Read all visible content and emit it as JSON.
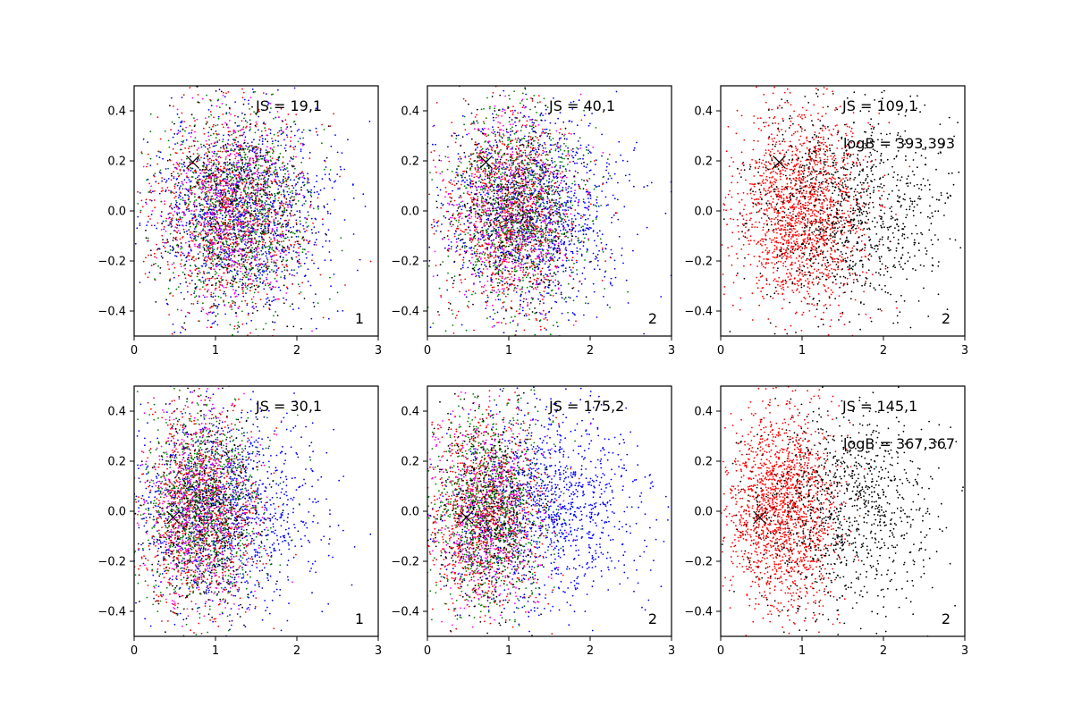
{
  "chart_data": [
    {
      "type": "scatter",
      "panel_label": "1",
      "annotations": [
        "JS = 19,1"
      ],
      "xlim": [
        0,
        3
      ],
      "ylim": [
        -0.5,
        0.5
      ],
      "xticks": [
        "0",
        "1",
        "2",
        "3"
      ],
      "yticks": [
        "−0.4",
        "−0.2",
        "0.0",
        "0.2",
        "0.4"
      ],
      "marker": {
        "x": 0.72,
        "y": 0.195
      },
      "series": [
        {
          "color": "#0000ff",
          "cloud": {
            "cx": 1.3,
            "sx": 0.55,
            "cy": 0.0,
            "sy": 0.2,
            "n": 1300,
            "seed": 11
          }
        },
        {
          "color": "#ff0000",
          "cloud": {
            "cx": 1.2,
            "sx": 0.45,
            "cy": 0.0,
            "sy": 0.2,
            "n": 1000,
            "seed": 12
          }
        },
        {
          "color": "#008000",
          "cloud": {
            "cx": 1.25,
            "sx": 0.45,
            "cy": 0.0,
            "sy": 0.2,
            "n": 900,
            "seed": 13
          }
        },
        {
          "color": "#ff00ff",
          "cloud": {
            "cx": 1.2,
            "sx": 0.4,
            "cy": 0.0,
            "sy": 0.2,
            "n": 500,
            "seed": 14
          }
        },
        {
          "color": "#000000",
          "cloud": {
            "cx": 1.25,
            "sx": 0.45,
            "cy": 0.0,
            "sy": 0.2,
            "n": 500,
            "seed": 15
          }
        }
      ]
    },
    {
      "type": "scatter",
      "panel_label": "2",
      "annotations": [
        "JS = 40,1"
      ],
      "xlim": [
        0,
        3
      ],
      "ylim": [
        -0.5,
        0.5
      ],
      "xticks": [
        "0",
        "1",
        "2",
        "3"
      ],
      "yticks": [
        "−0.4",
        "−0.2",
        "0.0",
        "0.2",
        "0.4"
      ],
      "marker": {
        "x": 0.72,
        "y": 0.195
      },
      "series": [
        {
          "color": "#0000ff",
          "cloud": {
            "cx": 1.3,
            "sx": 0.55,
            "cy": 0.0,
            "sy": 0.2,
            "n": 1300,
            "seed": 21
          }
        },
        {
          "color": "#ff0000",
          "cloud": {
            "cx": 1.0,
            "sx": 0.4,
            "cy": 0.0,
            "sy": 0.2,
            "n": 1000,
            "seed": 22
          }
        },
        {
          "color": "#008000",
          "cloud": {
            "cx": 1.1,
            "sx": 0.4,
            "cy": 0.0,
            "sy": 0.2,
            "n": 900,
            "seed": 23
          }
        },
        {
          "color": "#ff00ff",
          "cloud": {
            "cx": 1.0,
            "sx": 0.4,
            "cy": 0.0,
            "sy": 0.2,
            "n": 500,
            "seed": 24
          }
        },
        {
          "color": "#000000",
          "cloud": {
            "cx": 1.05,
            "sx": 0.4,
            "cy": 0.0,
            "sy": 0.2,
            "n": 500,
            "seed": 25
          }
        }
      ]
    },
    {
      "type": "scatter",
      "panel_label": "2",
      "annotations": [
        "JS = 109,1",
        "logB = 393,393"
      ],
      "xlim": [
        0,
        3
      ],
      "ylim": [
        -0.5,
        0.5
      ],
      "xticks": [
        "0",
        "1",
        "2",
        "3"
      ],
      "yticks": [
        "−0.4",
        "−0.2",
        "0.0",
        "0.2",
        "0.4"
      ],
      "marker": {
        "x": 0.72,
        "y": 0.195
      },
      "series": [
        {
          "color": "#ff0000",
          "cloud": {
            "cx": 1.0,
            "sx": 0.4,
            "cy": 0.0,
            "sy": 0.2,
            "n": 1700,
            "seed": 31
          }
        },
        {
          "color": "#000000",
          "cloud": {
            "cx": 1.6,
            "sx": 0.6,
            "cy": 0.0,
            "sy": 0.2,
            "n": 1100,
            "seed": 32
          }
        }
      ]
    },
    {
      "type": "scatter",
      "panel_label": "1",
      "annotations": [
        "JS = 30,1"
      ],
      "xlim": [
        0,
        3
      ],
      "ylim": [
        -0.5,
        0.5
      ],
      "xticks": [
        "0",
        "1",
        "2",
        "3"
      ],
      "yticks": [
        "−0.4",
        "−0.2",
        "0.0",
        "0.2",
        "0.4"
      ],
      "marker": {
        "x": 0.48,
        "y": -0.025
      },
      "series": [
        {
          "color": "#0000ff",
          "cloud": {
            "cx": 1.1,
            "sx": 0.55,
            "cy": 0.0,
            "sy": 0.2,
            "n": 1300,
            "seed": 41
          }
        },
        {
          "color": "#ff0000",
          "cloud": {
            "cx": 0.8,
            "sx": 0.35,
            "cy": 0.0,
            "sy": 0.2,
            "n": 1000,
            "seed": 42
          }
        },
        {
          "color": "#008000",
          "cloud": {
            "cx": 0.85,
            "sx": 0.35,
            "cy": 0.0,
            "sy": 0.2,
            "n": 900,
            "seed": 43
          }
        },
        {
          "color": "#ff00ff",
          "cloud": {
            "cx": 0.8,
            "sx": 0.35,
            "cy": 0.0,
            "sy": 0.2,
            "n": 500,
            "seed": 44
          }
        },
        {
          "color": "#000000",
          "cloud": {
            "cx": 0.85,
            "sx": 0.35,
            "cy": 0.0,
            "sy": 0.2,
            "n": 500,
            "seed": 45
          }
        }
      ]
    },
    {
      "type": "scatter",
      "panel_label": "2",
      "annotations": [
        "JS = 175,2"
      ],
      "xlim": [
        0,
        3
      ],
      "ylim": [
        -0.5,
        0.5
      ],
      "xticks": [
        "0",
        "1",
        "2",
        "3"
      ],
      "yticks": [
        "−0.4",
        "−0.2",
        "0.0",
        "0.2",
        "0.4"
      ],
      "marker": {
        "x": 0.48,
        "y": -0.025
      },
      "series": [
        {
          "color": "#0000ff",
          "cloud": {
            "cx": 1.4,
            "sx": 0.6,
            "cy": 0.0,
            "sy": 0.2,
            "n": 1300,
            "seed": 51
          }
        },
        {
          "color": "#ff0000",
          "cloud": {
            "cx": 0.7,
            "sx": 0.35,
            "cy": 0.0,
            "sy": 0.2,
            "n": 1000,
            "seed": 52
          }
        },
        {
          "color": "#008000",
          "cloud": {
            "cx": 0.75,
            "sx": 0.35,
            "cy": 0.0,
            "sy": 0.2,
            "n": 900,
            "seed": 53
          }
        },
        {
          "color": "#ff00ff",
          "cloud": {
            "cx": 0.7,
            "sx": 0.35,
            "cy": 0.0,
            "sy": 0.2,
            "n": 500,
            "seed": 54
          }
        },
        {
          "color": "#000000",
          "cloud": {
            "cx": 0.75,
            "sx": 0.35,
            "cy": 0.0,
            "sy": 0.2,
            "n": 500,
            "seed": 55
          }
        }
      ]
    },
    {
      "type": "scatter",
      "panel_label": "2",
      "annotations": [
        "JS = 145,1",
        "logB = 367,367"
      ],
      "xlim": [
        0,
        3
      ],
      "ylim": [
        -0.5,
        0.5
      ],
      "xticks": [
        "0",
        "1",
        "2",
        "3"
      ],
      "yticks": [
        "−0.4",
        "−0.2",
        "0.0",
        "0.2",
        "0.4"
      ],
      "marker": {
        "x": 0.48,
        "y": -0.025
      },
      "series": [
        {
          "color": "#ff0000",
          "cloud": {
            "cx": 0.75,
            "sx": 0.35,
            "cy": 0.0,
            "sy": 0.2,
            "n": 1700,
            "seed": 61
          }
        },
        {
          "color": "#000000",
          "cloud": {
            "cx": 1.5,
            "sx": 0.6,
            "cy": 0.0,
            "sy": 0.2,
            "n": 1100,
            "seed": 62
          }
        }
      ]
    }
  ]
}
